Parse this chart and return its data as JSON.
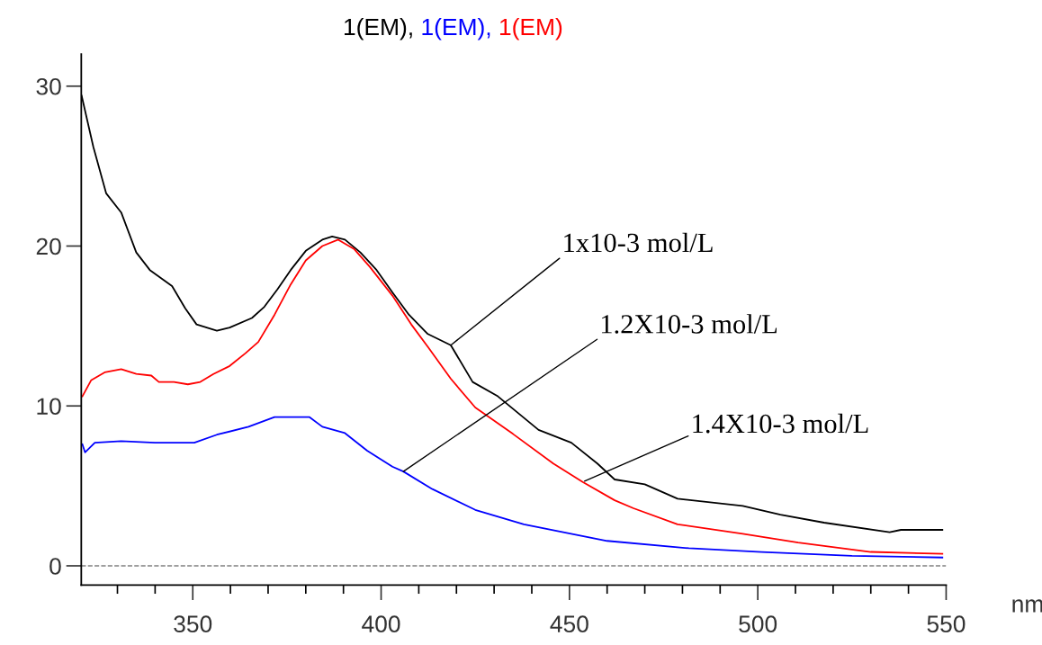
{
  "chart_data": {
    "type": "line",
    "xlabel": "nm",
    "xlim": [
      320.4,
      550
    ],
    "ylim": [
      -1.2,
      32
    ],
    "xticks": [
      350,
      400,
      450,
      500,
      550
    ],
    "yticks": [
      0,
      10,
      20,
      30
    ],
    "grid": false,
    "legend": "top",
    "line_style": "solid",
    "marker": "none",
    "ref_lines": [
      {
        "axis": "y",
        "value": 0,
        "color": "#808080",
        "line_style": "dashed"
      }
    ],
    "series": [
      {
        "name": "1(EM),",
        "color": "#000000",
        "x": [
          320.5,
          323.6,
          327,
          331,
          335,
          338.6,
          344.5,
          348,
          351,
          356.4,
          359.8,
          365.7,
          369,
          372.5,
          376,
          380,
          384.4,
          387,
          390.4,
          394.5,
          398.8,
          403,
          407.4,
          412.4,
          418.5,
          424.3,
          431,
          441.8,
          450.5,
          457.4,
          462,
          470,
          478.7,
          496,
          506,
          517.6,
          535,
          538,
          549
        ],
        "values": [
          29.4,
          26.2,
          23.3,
          22.1,
          19.6,
          18.5,
          17.5,
          16.1,
          15.1,
          14.7,
          14.9,
          15.5,
          16.2,
          17.3,
          18.5,
          19.7,
          20.4,
          20.6,
          20.4,
          19.6,
          18.5,
          17.1,
          15.7,
          14.5,
          13.8,
          11.5,
          10.6,
          8.5,
          7.7,
          6.4,
          5.4,
          5.1,
          4.2,
          3.75,
          3.2,
          2.7,
          2.1,
          2.25,
          2.25
        ]
      },
      {
        "name": "1(EM),",
        "color": "#0000ff",
        "x": [
          320.7,
          321.4,
          324,
          331,
          340,
          350.4,
          356.4,
          364.8,
          371.7,
          381,
          384.4,
          390.4,
          396.3,
          403,
          405.9,
          413.6,
          425,
          437.9,
          460,
          481.7,
          501,
          525,
          549
        ],
        "values": [
          7.6,
          7.1,
          7.7,
          7.8,
          7.7,
          7.7,
          8.2,
          8.7,
          9.3,
          9.3,
          8.7,
          8.3,
          7.2,
          6.2,
          5.9,
          4.8,
          3.5,
          2.6,
          1.56,
          1.1,
          0.87,
          0.63,
          0.52
        ]
      },
      {
        "name": "1(EM)",
        "color": "#ff0000",
        "x": [
          320.7,
          323,
          326.6,
          331,
          335,
          339,
          341,
          345,
          348.7,
          352,
          355.5,
          359.8,
          364,
          367.4,
          371.7,
          376,
          380,
          384.4,
          388.6,
          392.9,
          397,
          403,
          408,
          412.4,
          418.5,
          425,
          435,
          445.7,
          453.5,
          462,
          467,
          478.7,
          496,
          510.7,
          530,
          549
        ],
        "values": [
          10.6,
          11.6,
          12.1,
          12.3,
          12.0,
          11.9,
          11.5,
          11.5,
          11.35,
          11.5,
          12.0,
          12.5,
          13.3,
          14.0,
          15.7,
          17.6,
          19.1,
          20.0,
          20.4,
          19.8,
          18.7,
          16.9,
          15.1,
          13.7,
          11.7,
          9.9,
          8.25,
          6.4,
          5.25,
          4.1,
          3.6,
          2.6,
          2.0,
          1.45,
          0.87,
          0.75
        ]
      }
    ],
    "annotations": [
      {
        "text": "1x10-3 mol/L",
        "x": 418.5,
        "y": 13.8
      },
      {
        "text": "1.2X10-3 mol/L",
        "x": 405.9,
        "y": 5.9
      },
      {
        "text": "1.4X10-3 mol/L",
        "x": 454,
        "y": 5.3
      }
    ]
  }
}
